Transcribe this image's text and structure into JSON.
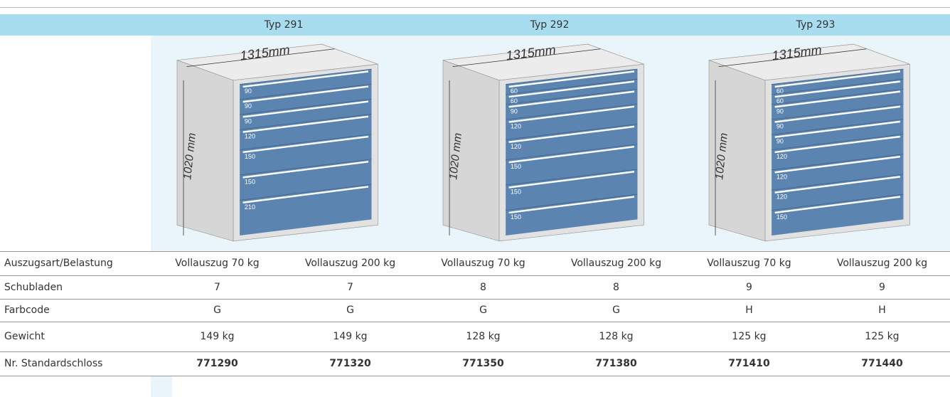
{
  "header": {
    "types": [
      "Typ 291",
      "Typ 292",
      "Typ 293"
    ]
  },
  "cabinets": [
    {
      "width_label": "1315mm",
      "height_label": "1020 mm",
      "drawers": [
        90,
        90,
        90,
        120,
        150,
        150,
        210
      ]
    },
    {
      "width_label": "1315mm",
      "height_label": "1020 mm",
      "drawers": [
        60,
        60,
        90,
        120,
        120,
        150,
        150,
        150
      ]
    },
    {
      "width_label": "1315mm",
      "height_label": "1020 mm",
      "drawers": [
        60,
        60,
        90,
        90,
        90,
        120,
        120,
        120,
        150
      ]
    }
  ],
  "table": {
    "rows": [
      {
        "label": "Auszugsart/Belastung",
        "cells": [
          "Vollauszug 70 kg",
          "Vollauszug 200 kg",
          "Vollauszug 70 kg",
          "Vollauszug 200 kg",
          "Vollauszug 70 kg",
          "Vollauszug 200 kg"
        ]
      },
      {
        "label": "Schubladen",
        "cells": [
          "7",
          "7",
          "8",
          "8",
          "9",
          "9"
        ]
      },
      {
        "label": "Farbcode",
        "cells": [
          "G",
          "G",
          "G",
          "G",
          "H",
          "H"
        ]
      },
      {
        "label": "Gewicht",
        "cells": [
          "149 kg",
          "149 kg",
          "128 kg",
          "128 kg",
          "125 kg",
          "125 kg"
        ]
      },
      {
        "label": "Nr. Standardschloss",
        "cells": [
          "771290",
          "771320",
          "771350",
          "771380",
          "771410",
          "771440"
        ]
      }
    ]
  }
}
